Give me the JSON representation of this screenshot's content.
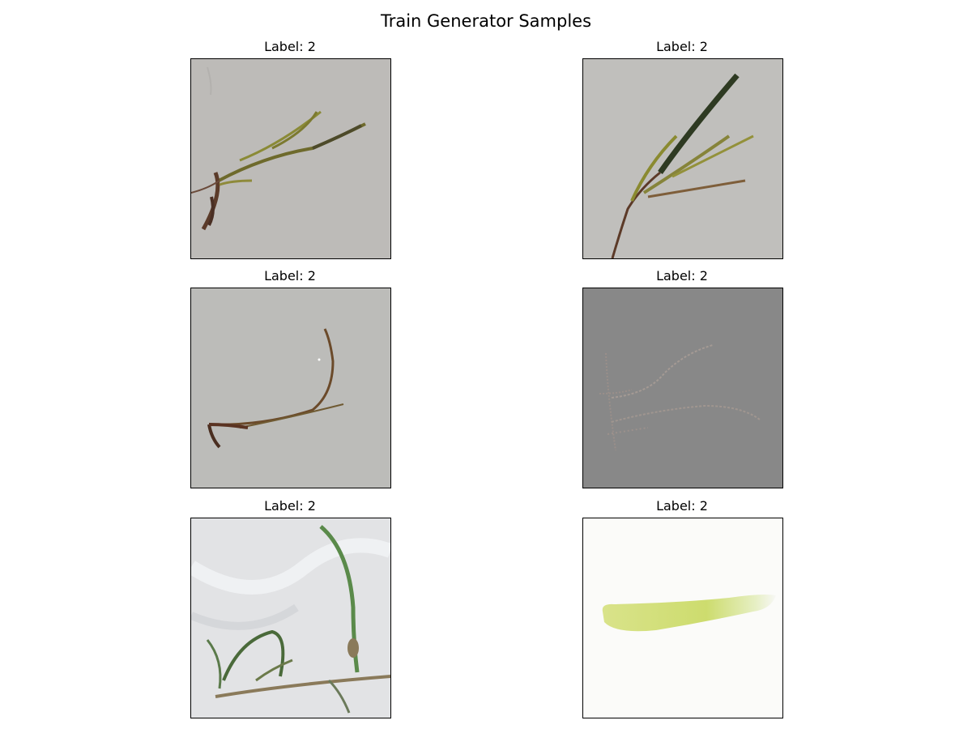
{
  "figure": {
    "title": "Train Generator Samples"
  },
  "panels": [
    {
      "label": "Label: 2",
      "background_color": "#bdbbb8",
      "subject": "brown-green seagrass sprig on grey surface"
    },
    {
      "label": "Label: 2",
      "background_color": "#c0bfbc",
      "subject": "seagrass sprig with dark leaf on grey surface"
    },
    {
      "label": "Label: 2",
      "background_color": "#bcbcb9",
      "subject": "thin brown seagrass blades on grey surface"
    },
    {
      "label": "Label: 2",
      "background_color": "#888888",
      "subject": "faint greyish seagrass on dark grey background"
    },
    {
      "label": "Label: 2",
      "background_color": "#e2e3e5",
      "subject": "green seagrass on plastic bag"
    },
    {
      "label": "Label: 2",
      "background_color": "#fbfbf9",
      "subject": "pale yellow-green leaf blade on white"
    }
  ]
}
